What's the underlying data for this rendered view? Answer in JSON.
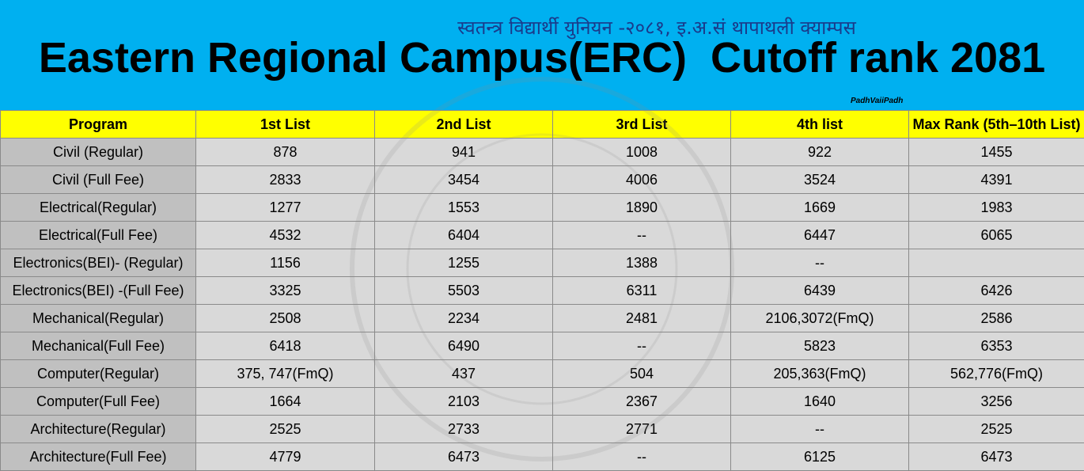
{
  "header": {
    "subtitle": "स्वतन्त्र विद्यार्थी युनियन -२०८१, इ.अ.सं थापाथली क्याम्पस",
    "title": "Eastern Regional Campus(ERC)  Cutoff rank 2081",
    "credit": "PadhVaiiPadh"
  },
  "table": {
    "columns": [
      "Program",
      "1st List",
      "2nd List",
      "3rd List",
      "4th list",
      "Max Rank (5th–10th List)"
    ],
    "rows": [
      [
        "Civil (Regular)",
        "878",
        "941",
        "1008",
        "922",
        "1455"
      ],
      [
        "Civil (Full Fee)",
        "2833",
        "3454",
        "4006",
        "3524",
        "4391"
      ],
      [
        "Electrical(Regular)",
        "1277",
        "1553",
        "1890",
        "1669",
        "1983"
      ],
      [
        "Electrical(Full Fee)",
        "4532",
        "6404",
        "--",
        "6447",
        "6065"
      ],
      [
        "Electronics(BEI)- (Regular)",
        "1156",
        "1255",
        "1388",
        "--",
        null
      ],
      [
        "Electronics(BEI) -(Full Fee)",
        "3325",
        "5503",
        "6311",
        "6439",
        "6426"
      ],
      [
        "Mechanical(Regular)",
        "2508",
        "2234",
        "2481",
        "2106,3072(FmQ)",
        "2586"
      ],
      [
        "Mechanical(Full Fee)",
        "6418",
        "6490",
        "--",
        "5823",
        "6353"
      ],
      [
        "Computer(Regular)",
        "375, 747(FmQ)",
        "437",
        "504",
        "205,363(FmQ)",
        "562,776(FmQ)"
      ],
      [
        "Computer(Full Fee)",
        "1664",
        "2103",
        "2367",
        "1640",
        "3256"
      ],
      [
        "Architecture(Regular)",
        "2525",
        "2733",
        "2771",
        "--",
        "2525"
      ],
      [
        "Architecture(Full Fee)",
        "4779",
        "6473",
        "--",
        "6125",
        "6473"
      ]
    ]
  }
}
